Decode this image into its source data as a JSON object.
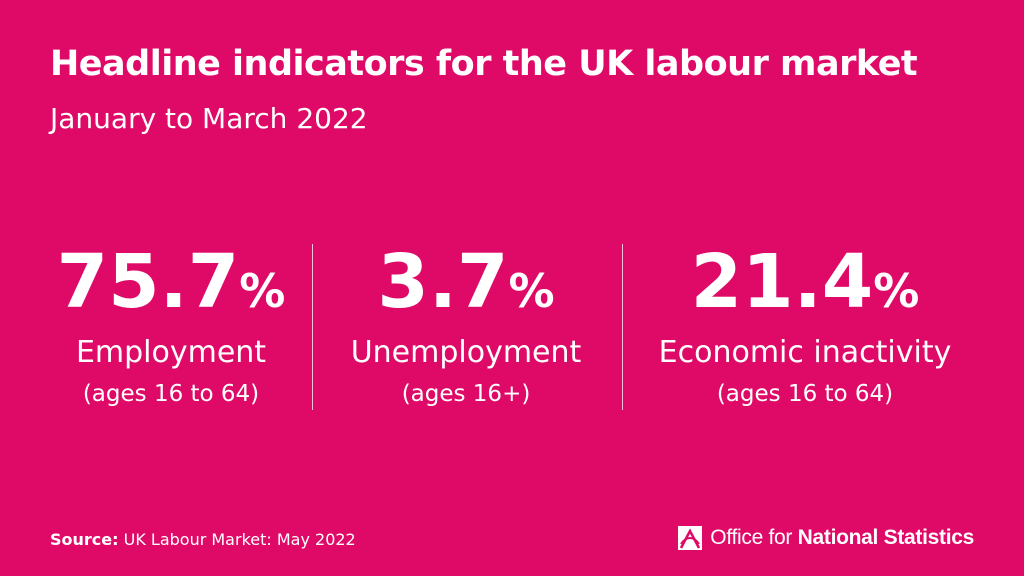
{
  "header": {
    "title": "Headline indicators for the UK labour market",
    "subtitle": "January to March 2022"
  },
  "stats": [
    {
      "value": "75.7",
      "unit": "%",
      "label": "Employment",
      "sub": "(ages 16 to 64)"
    },
    {
      "value": "3.7",
      "unit": "%",
      "label": "Unemployment",
      "sub": "(ages 16+)"
    },
    {
      "value": "21.4",
      "unit": "%",
      "label": "Economic inactivity",
      "sub": "(ages 16 to 64)"
    }
  ],
  "footer": {
    "source_prefix": "Source:",
    "source_text": " UK Labour Market: May 2022",
    "logo_regular": "Office for ",
    "logo_bold": "National Statistics",
    "logo_icon": "ons-logo-icon"
  },
  "colors": {
    "background": "#df0a67",
    "text": "#ffffff"
  }
}
